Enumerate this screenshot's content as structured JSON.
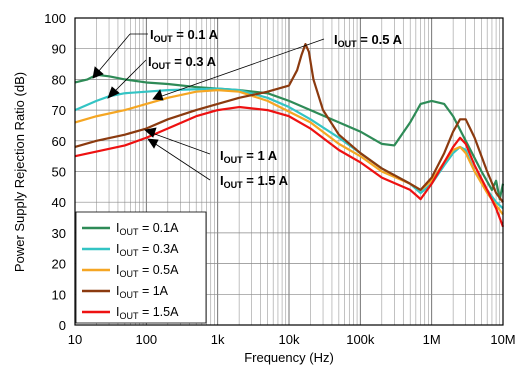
{
  "chart_data": {
    "type": "line",
    "xlabel": "Frequency (Hz)",
    "ylabel": "Power Supply Rejection Ratio (dB)",
    "x_scale": "log",
    "xlim": [
      10,
      10000000
    ],
    "ylim": [
      0,
      100
    ],
    "grid": true,
    "x_tick_labels": [
      "10",
      "100",
      "1k",
      "10k",
      "100k",
      "1M",
      "10M"
    ],
    "y_tick_labels": [
      "0",
      "10",
      "20",
      "30",
      "40",
      "50",
      "60",
      "70",
      "80",
      "90",
      "100"
    ],
    "legend_position": "bottom-left",
    "legend": {
      "prefix": "I",
      "sub": "OUT",
      "labels": [
        " = 0.1A",
        " = 0.3A",
        " = 0.5A",
        " = 1A",
        " = 1.5A"
      ]
    },
    "annotations": [
      {
        "prefix": "I",
        "sub": "OUT",
        "text": " = 0.1 A"
      },
      {
        "prefix": "I",
        "sub": "OUT",
        "text": " = 0.3 A"
      },
      {
        "prefix": "I",
        "sub": "OUT",
        "text": " = 0.5 A"
      },
      {
        "prefix": "I",
        "sub": "OUT",
        "text": " = 1 A"
      },
      {
        "prefix": "I",
        "sub": "OUT",
        "text": " = 1.5 A"
      }
    ],
    "series": [
      {
        "color": "#2e8b57",
        "points": [
          [
            10,
            79
          ],
          [
            15,
            80
          ],
          [
            20,
            81.5
          ],
          [
            30,
            81
          ],
          [
            50,
            80
          ],
          [
            100,
            79
          ],
          [
            200,
            78.5
          ],
          [
            500,
            77.5
          ],
          [
            1000,
            77
          ],
          [
            2000,
            76.5
          ],
          [
            5000,
            75.5
          ],
          [
            10000,
            73
          ],
          [
            20000,
            70
          ],
          [
            50000,
            66
          ],
          [
            100000,
            63
          ],
          [
            200000,
            59
          ],
          [
            300000,
            58.5
          ],
          [
            500000,
            66
          ],
          [
            700000,
            72
          ],
          [
            1000000,
            73
          ],
          [
            1500000,
            72
          ],
          [
            2000000,
            68
          ],
          [
            3000000,
            60
          ],
          [
            5000000,
            50
          ],
          [
            7000000,
            44
          ],
          [
            8000000,
            47
          ],
          [
            9000000,
            41
          ],
          [
            10000000,
            46
          ]
        ]
      },
      {
        "color": "#33c4c4",
        "points": [
          [
            10,
            70
          ],
          [
            20,
            73
          ],
          [
            30,
            74.5
          ],
          [
            50,
            75.5
          ],
          [
            100,
            76
          ],
          [
            200,
            76.5
          ],
          [
            500,
            76.8
          ],
          [
            1000,
            77
          ],
          [
            2000,
            76.5
          ],
          [
            5000,
            74
          ],
          [
            10000,
            71
          ],
          [
            20000,
            67
          ],
          [
            50000,
            61
          ],
          [
            100000,
            56
          ],
          [
            200000,
            51
          ],
          [
            500000,
            46
          ],
          [
            700000,
            43
          ],
          [
            1000000,
            46
          ],
          [
            1500000,
            52
          ],
          [
            2000000,
            56
          ],
          [
            2500000,
            58
          ],
          [
            3000000,
            57
          ],
          [
            4000000,
            50
          ],
          [
            6000000,
            44
          ],
          [
            8000000,
            40
          ],
          [
            10000000,
            38
          ]
        ]
      },
      {
        "color": "#f5a623",
        "points": [
          [
            10,
            66
          ],
          [
            20,
            68
          ],
          [
            50,
            70
          ],
          [
            100,
            72
          ],
          [
            200,
            74
          ],
          [
            500,
            76
          ],
          [
            1000,
            76.5
          ],
          [
            2000,
            76
          ],
          [
            5000,
            73
          ],
          [
            10000,
            69.5
          ],
          [
            20000,
            66
          ],
          [
            50000,
            59
          ],
          [
            100000,
            55
          ],
          [
            200000,
            50
          ],
          [
            500000,
            46
          ],
          [
            700000,
            44
          ],
          [
            1000000,
            47
          ],
          [
            1500000,
            53
          ],
          [
            2000000,
            57
          ],
          [
            2500000,
            58
          ],
          [
            3000000,
            56
          ],
          [
            4000000,
            50
          ],
          [
            6000000,
            43
          ],
          [
            8000000,
            39
          ],
          [
            10000000,
            36
          ]
        ]
      },
      {
        "color": "#8b3a0f",
        "points": [
          [
            10,
            58
          ],
          [
            20,
            60
          ],
          [
            50,
            62
          ],
          [
            100,
            64
          ],
          [
            200,
            67
          ],
          [
            500,
            70
          ],
          [
            1000,
            72
          ],
          [
            2000,
            74
          ],
          [
            5000,
            76
          ],
          [
            10000,
            78
          ],
          [
            13000,
            83
          ],
          [
            15000,
            88
          ],
          [
            17000,
            91.5
          ],
          [
            19000,
            89
          ],
          [
            22000,
            80
          ],
          [
            30000,
            70
          ],
          [
            50000,
            62
          ],
          [
            100000,
            56
          ],
          [
            200000,
            51
          ],
          [
            500000,
            46
          ],
          [
            700000,
            44
          ],
          [
            1000000,
            48
          ],
          [
            1500000,
            56
          ],
          [
            2000000,
            63
          ],
          [
            2500000,
            67
          ],
          [
            3000000,
            67
          ],
          [
            4000000,
            61
          ],
          [
            6000000,
            50
          ],
          [
            8000000,
            43
          ],
          [
            10000000,
            40
          ]
        ]
      },
      {
        "color": "#ee1111",
        "points": [
          [
            10,
            55
          ],
          [
            20,
            56.5
          ],
          [
            50,
            58.5
          ],
          [
            100,
            61
          ],
          [
            200,
            64
          ],
          [
            500,
            68
          ],
          [
            1000,
            70
          ],
          [
            2000,
            71
          ],
          [
            5000,
            70
          ],
          [
            10000,
            68
          ],
          [
            20000,
            64
          ],
          [
            50000,
            57
          ],
          [
            100000,
            53
          ],
          [
            200000,
            48
          ],
          [
            500000,
            44
          ],
          [
            700000,
            41
          ],
          [
            1000000,
            46
          ],
          [
            1500000,
            53
          ],
          [
            2000000,
            58
          ],
          [
            2500000,
            61
          ],
          [
            3000000,
            59
          ],
          [
            4000000,
            52
          ],
          [
            6000000,
            44
          ],
          [
            8000000,
            38
          ],
          [
            10000000,
            32
          ]
        ]
      }
    ]
  }
}
